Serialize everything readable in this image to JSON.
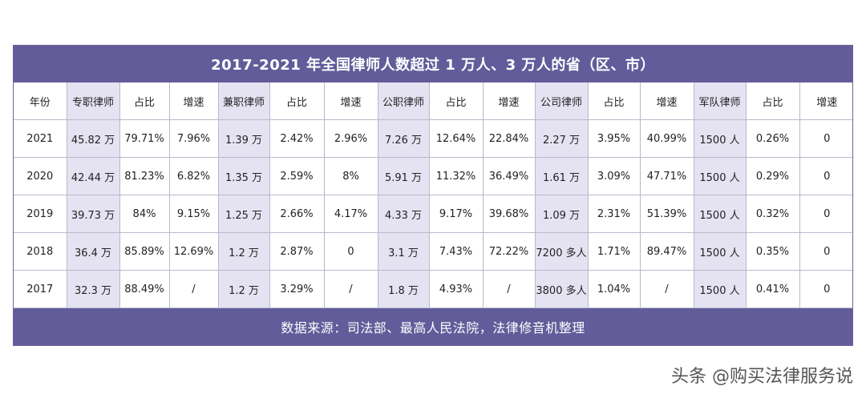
{
  "title": "2017-2021 年全国律师人数超过 1 万人、3 万人的省（区、市）",
  "table": {
    "headers": [
      "年份",
      "专职律师",
      "占比",
      "增速",
      "兼职律师",
      "占比",
      "增速",
      "公职律师",
      "占比",
      "增速",
      "公司律师",
      "占比",
      "增速",
      "军队律师",
      "占比",
      "增速"
    ],
    "rows": [
      [
        "2021",
        "45.82 万",
        "79.71%",
        "7.96%",
        "1.39 万",
        "2.42%",
        "2.96%",
        "7.26 万",
        "12.64%",
        "22.84%",
        "2.27 万",
        "3.95%",
        "40.99%",
        "1500 人",
        "0.26%",
        "0"
      ],
      [
        "2020",
        "42.44 万",
        "81.23%",
        "6.82%",
        "1.35 万",
        "2.59%",
        "8%",
        "5.91 万",
        "11.32%",
        "36.49%",
        "1.61 万",
        "3.09%",
        "47.71%",
        "1500 人",
        "0.29%",
        "0"
      ],
      [
        "2019",
        "39.73 万",
        "84%",
        "9.15%",
        "1.25 万",
        "2.66%",
        "4.17%",
        "4.33 万",
        "9.17%",
        "39.68%",
        "1.09 万",
        "2.31%",
        "51.39%",
        "1500 人",
        "0.32%",
        "0"
      ],
      [
        "2018",
        "36.4 万",
        "85.89%",
        "12.69%",
        "1.2 万",
        "2.87%",
        "0",
        "3.1 万",
        "7.43%",
        "72.22%",
        "7200 多人",
        "1.71%",
        "89.47%",
        "1500 人",
        "0.35%",
        "0"
      ],
      [
        "2017",
        "32.3 万",
        "88.49%",
        "/",
        "1.2 万",
        "3.29%",
        "/",
        "1.8 万",
        "4.93%",
        "/",
        "3800 多人",
        "1.04%",
        "/",
        "1500 人",
        "0.41%",
        "0"
      ]
    ]
  },
  "footer": "数据来源：司法部、最高人民法院，法律修音机整理",
  "watermark": "头条 @购买法律服务说",
  "colors": {
    "bar": "#625c9a",
    "highlight_column": "#e5e3f2",
    "grid": "#b9b9cc"
  }
}
